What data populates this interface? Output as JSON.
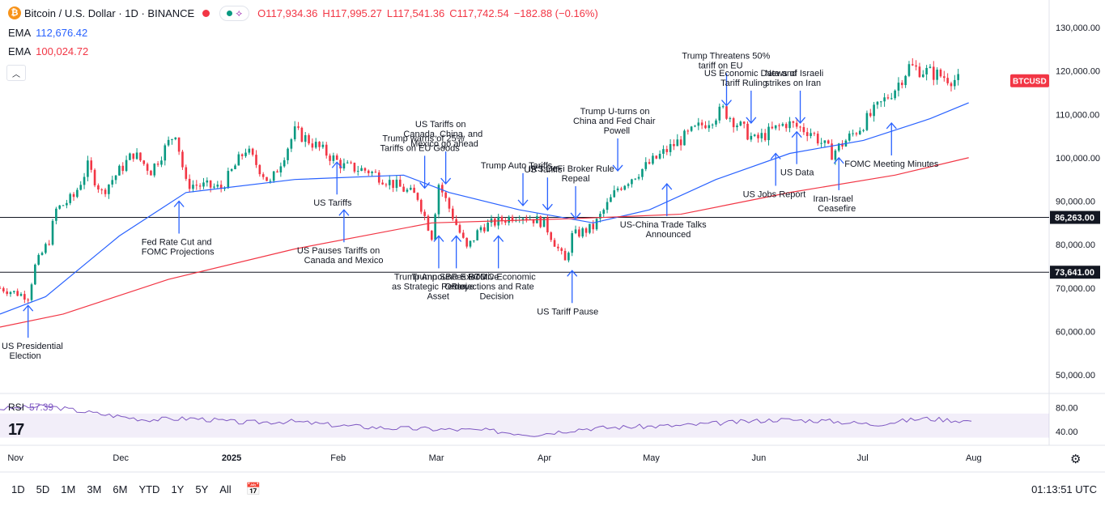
{
  "header": {
    "title": "Bitcoin / U.S. Dollar · 1D · BINANCE",
    "open": "O117,934.36",
    "high": "H117,995.27",
    "low": "L117,541.36",
    "close": "C117,742.54",
    "change": "−182.88 (−0.16%)"
  },
  "ema": [
    {
      "label": "EMA",
      "value": "112,676.42",
      "color": "#2962ff"
    },
    {
      "label": "EMA",
      "value": "100,024.72",
      "color": "#f23645"
    }
  ],
  "rsi": {
    "label": "RSI",
    "value": "57.39"
  },
  "colors": {
    "up": "#089981",
    "down": "#f23645",
    "ema_fast": "#2962ff",
    "ema_slow": "#f23645",
    "rsi": "#7e57c2",
    "annot": "#2962ff"
  },
  "price_axis": {
    "ticks": [
      "130,000.00",
      "120,000.00",
      "110,000.00",
      "100,000.00",
      "90,000.00",
      "80,000.00",
      "70,000.00",
      "60,000.00",
      "50,000.00"
    ],
    "symbol_label": "BTCUSD",
    "levels": [
      "86,263.00",
      "73,641.00"
    ]
  },
  "rsi_axis": {
    "ticks": [
      "80.00",
      "40.00"
    ]
  },
  "time_axis": [
    "Nov",
    "Dec",
    "2025",
    "Feb",
    "Mar",
    "Apr",
    "May",
    "Jun",
    "Jul",
    "Aug"
  ],
  "bottom": {
    "timeframes": [
      "1D",
      "5D",
      "1M",
      "3M",
      "6M",
      "YTD",
      "1Y",
      "5Y",
      "All"
    ],
    "clock": "01:13:51 UTC"
  },
  "chart_data": {
    "type": "candlestick",
    "title": "Bitcoin / U.S. Dollar · 1D · BINANCE",
    "ylim": [
      45000,
      135000
    ],
    "x_range": [
      "2024-10-28",
      "2025-08-04"
    ],
    "close_path": [
      [
        "2024-10-28",
        70000
      ],
      [
        "2024-11-05",
        68000
      ],
      [
        "2024-11-07",
        75000
      ],
      [
        "2024-11-11",
        81000
      ],
      [
        "2024-11-13",
        88000
      ],
      [
        "2024-11-18",
        91000
      ],
      [
        "2024-11-22",
        98000
      ],
      [
        "2024-11-26",
        92000
      ],
      [
        "2024-12-05",
        101000
      ],
      [
        "2024-12-10",
        97000
      ],
      [
        "2024-12-17",
        106000
      ],
      [
        "2024-12-20",
        94000
      ],
      [
        "2024-12-30",
        93000
      ],
      [
        "2025-01-06",
        102000
      ],
      [
        "2025-01-13",
        94000
      ],
      [
        "2025-01-20",
        106000
      ],
      [
        "2025-01-24",
        104000
      ],
      [
        "2025-02-03",
        98000
      ],
      [
        "2025-02-10",
        97000
      ],
      [
        "2025-02-24",
        91000
      ],
      [
        "2025-02-28",
        82000
      ],
      [
        "2025-03-02",
        94000
      ],
      [
        "2025-03-10",
        79000
      ],
      [
        "2025-03-14",
        84000
      ],
      [
        "2025-03-25",
        87000
      ],
      [
        "2025-04-01",
        85000
      ],
      [
        "2025-04-07",
        76000
      ],
      [
        "2025-04-09",
        82000
      ],
      [
        "2025-04-15",
        84000
      ],
      [
        "2025-04-22",
        93000
      ],
      [
        "2025-05-08",
        103000
      ],
      [
        "2025-05-22",
        111000
      ],
      [
        "2025-05-31",
        104000
      ],
      [
        "2025-06-09",
        108000
      ],
      [
        "2025-06-16",
        106000
      ],
      [
        "2025-06-22",
        101000
      ],
      [
        "2025-06-30",
        107000
      ],
      [
        "2025-07-10",
        116000
      ],
      [
        "2025-07-14",
        121000
      ],
      [
        "2025-07-28",
        117742
      ]
    ],
    "ema_fast": [
      [
        "2024-10-28",
        64000
      ],
      [
        "2024-11-10",
        68000
      ],
      [
        "2024-12-01",
        82000
      ],
      [
        "2024-12-20",
        92000
      ],
      [
        "2025-01-20",
        95000
      ],
      [
        "2025-02-20",
        96000
      ],
      [
        "2025-03-05",
        92000
      ],
      [
        "2025-03-25",
        88000
      ],
      [
        "2025-04-15",
        85000
      ],
      [
        "2025-05-01",
        88000
      ],
      [
        "2025-05-20",
        95000
      ],
      [
        "2025-06-10",
        101000
      ],
      [
        "2025-07-01",
        104000
      ],
      [
        "2025-07-20",
        109000
      ],
      [
        "2025-07-31",
        112676
      ]
    ],
    "ema_slow": [
      [
        "2024-10-28",
        61000
      ],
      [
        "2024-11-15",
        64000
      ],
      [
        "2024-12-15",
        72000
      ],
      [
        "2025-01-20",
        79000
      ],
      [
        "2025-02-28",
        85000
      ],
      [
        "2025-04-10",
        86000
      ],
      [
        "2025-05-10",
        87000
      ],
      [
        "2025-06-10",
        92000
      ],
      [
        "2025-07-10",
        96000
      ],
      [
        "2025-07-31",
        100025
      ]
    ],
    "levels": [
      86263,
      73641
    ],
    "rsi": {
      "ylim": [
        20,
        90
      ],
      "band": [
        30,
        70
      ],
      "points": [
        [
          0,
          78
        ],
        [
          0.05,
          82
        ],
        [
          0.1,
          70
        ],
        [
          0.15,
          60
        ],
        [
          0.2,
          62
        ],
        [
          0.25,
          55
        ],
        [
          0.3,
          57
        ],
        [
          0.35,
          50
        ],
        [
          0.4,
          46
        ],
        [
          0.45,
          44
        ],
        [
          0.5,
          42
        ],
        [
          0.55,
          35
        ],
        [
          0.6,
          45
        ],
        [
          0.65,
          48
        ],
        [
          0.7,
          50
        ],
        [
          0.75,
          55
        ],
        [
          0.8,
          60
        ],
        [
          0.85,
          58
        ],
        [
          0.9,
          52
        ],
        [
          0.95,
          62
        ],
        [
          1.0,
          57.39
        ]
      ]
    },
    "annotations": [
      {
        "text": "US Presidential Election",
        "date": "2024-11-05",
        "price": 66000,
        "dir": "up"
      },
      {
        "text": "Fed Rate Cut and FOMC Projections",
        "date": "2024-12-18",
        "price": 90000,
        "dir": "up"
      },
      {
        "text": "US Tariffs",
        "date": "2025-02-01",
        "price": 99000,
        "dir": "up"
      },
      {
        "text": "US Pauses Tariffs on Canada and Mexico",
        "date": "2025-02-03",
        "price": 88000,
        "dir": "up"
      },
      {
        "text": "Trump warns of 25% Tariffs on EU Goods",
        "date": "2025-02-26",
        "price": 93000,
        "dir": "down"
      },
      {
        "text": "US Tariffs on Canada, China, and Mexico go ahead",
        "date": "2025-03-04",
        "price": 94000,
        "dir": "down"
      },
      {
        "text": "Trump Announces BTC as Strategic Reserve Asset",
        "date": "2025-03-02",
        "price": 82000,
        "dir": "up"
      },
      {
        "text": "Trump SBR Executive Order",
        "date": "2025-03-07",
        "price": 82000,
        "dir": "up"
      },
      {
        "text": "FOMC Economic Projections and Rate Decision",
        "date": "2025-03-19",
        "price": 82000,
        "dir": "up"
      },
      {
        "text": "Trump Auto Tariffs",
        "date": "2025-03-26",
        "price": 89000,
        "dir": "down"
      },
      {
        "text": "US Tariffs",
        "date": "2025-04-02",
        "price": 88000,
        "dir": "down"
      },
      {
        "text": "IRS DeFi Broker Rule Repeal",
        "date": "2025-04-10",
        "price": 86000,
        "dir": "down"
      },
      {
        "text": "US Tariff Pause",
        "date": "2025-04-09",
        "price": 74000,
        "dir": "up"
      },
      {
        "text": "Trump U-turns on China and Fed Chair Powell",
        "date": "2025-04-22",
        "price": 97000,
        "dir": "down"
      },
      {
        "text": "US-China Trade Talks Announced",
        "date": "2025-05-06",
        "price": 94000,
        "dir": "up"
      },
      {
        "text": "Trump Threatens 50% tariff on EU",
        "date": "2025-05-23",
        "price": 112000,
        "dir": "down"
      },
      {
        "text": "US Economic Data and Tariff Ruling",
        "date": "2025-05-30",
        "price": 108000,
        "dir": "down"
      },
      {
        "text": "US Jobs Report",
        "date": "2025-06-06",
        "price": 101000,
        "dir": "up"
      },
      {
        "text": "News of Israeli strikes on Iran",
        "date": "2025-06-13",
        "price": 108000,
        "dir": "down"
      },
      {
        "text": "US Data",
        "date": "2025-06-12",
        "price": 106000,
        "dir": "up"
      },
      {
        "text": "Iran-Israel Ceasefire",
        "date": "2025-06-24",
        "price": 100000,
        "dir": "up"
      },
      {
        "text": "FOMC Meeting Minutes",
        "date": "2025-07-09",
        "price": 108000,
        "dir": "up"
      }
    ]
  }
}
